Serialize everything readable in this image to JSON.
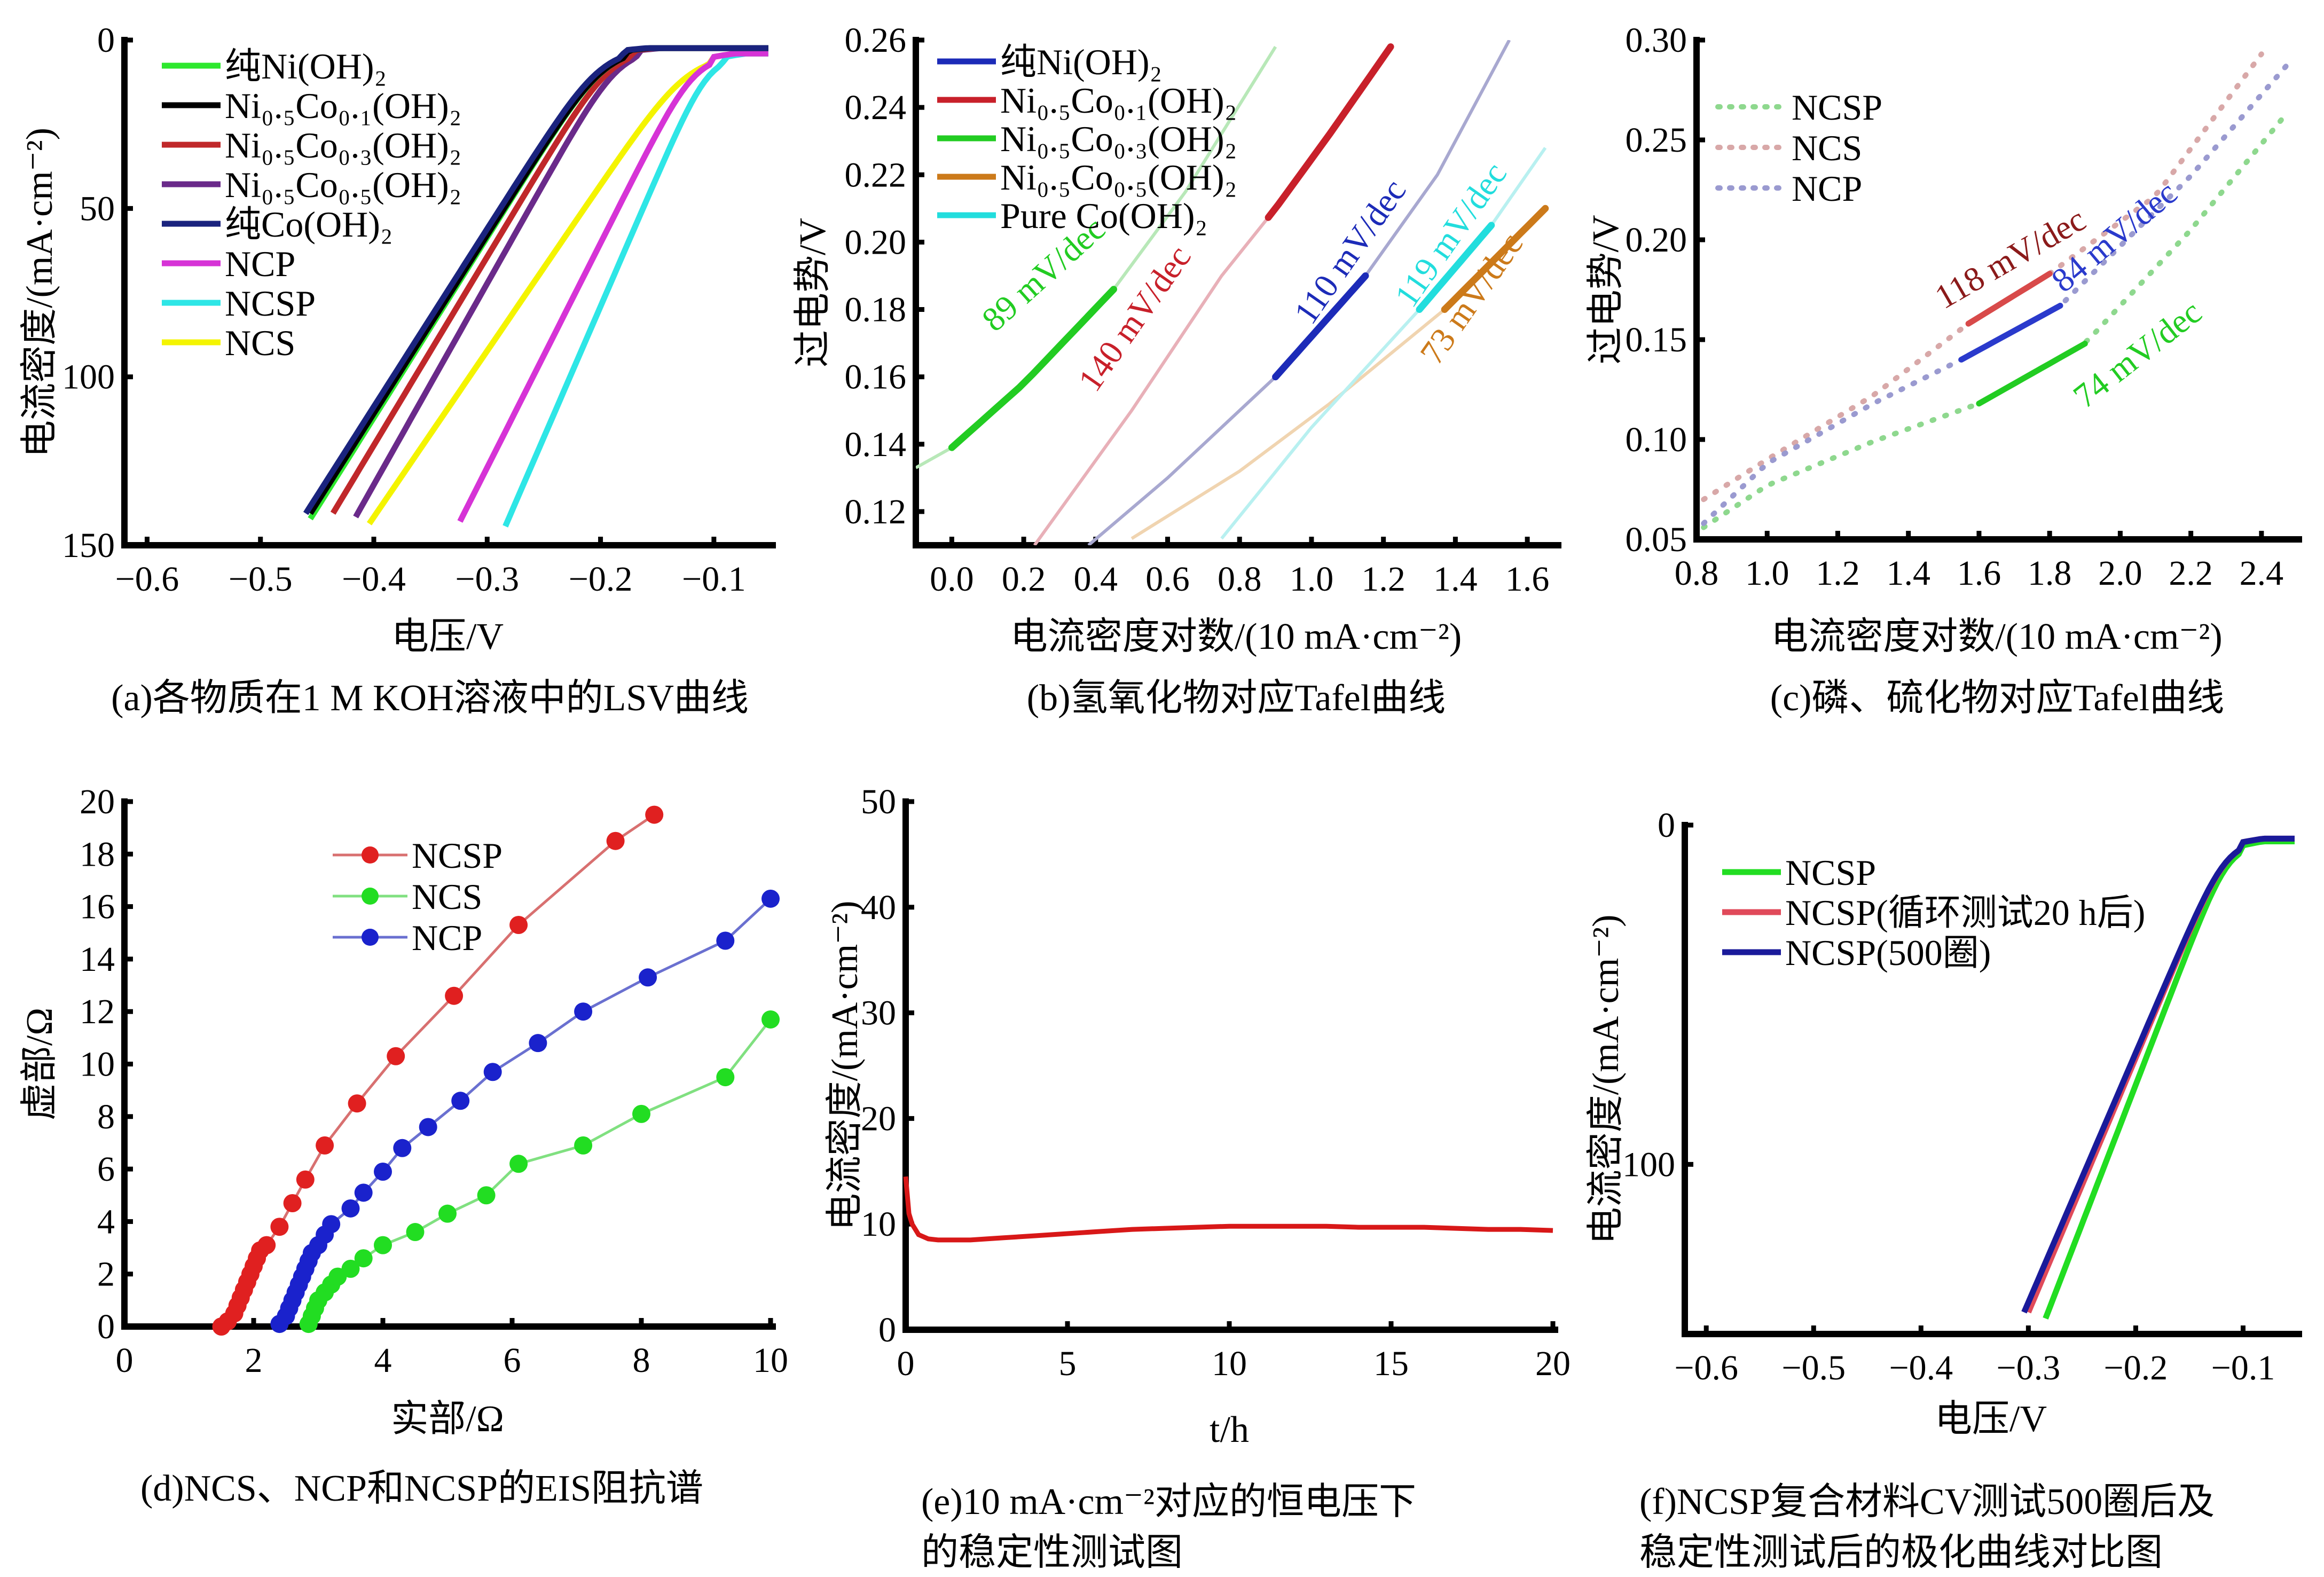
{
  "chart_data": [
    {
      "id": "a",
      "type": "line",
      "caption": "(a)各物质在1 M KOH溶液中的LSV曲线",
      "xlabel": "电压/V",
      "ylabel": "电流密度/(mA·cm⁻²)",
      "xlim": [
        -0.62,
        -0.05
      ],
      "ylim": [
        0,
        150
      ],
      "y_inverted": true,
      "xticks": [
        -0.6,
        -0.5,
        -0.4,
        -0.3,
        -0.2,
        -0.1
      ],
      "xtick_labels": [
        "−0.6",
        "−0.5",
        "−0.4",
        "−0.3",
        "−0.2",
        "−0.1"
      ],
      "yticks": [
        0,
        50,
        100,
        150
      ],
      "ytick_labels": [
        "0",
        "50",
        "100",
        "150"
      ],
      "legend_position": "top-left",
      "series": [
        {
          "name": "纯Ni(OH)₂",
          "color": "#2ee82e",
          "onset": -0.175,
          "v150": -0.455,
          "tail": 3
        },
        {
          "name": "Ni₀.₅Co₀.₁(OH)₂",
          "color": "#000000",
          "onset": -0.175,
          "v150": -0.458,
          "tail": 3
        },
        {
          "name": "Ni₀.₅Co₀.₃(OH)₂",
          "color": "#c0282a",
          "onset": -0.17,
          "v150": -0.438,
          "tail": 3
        },
        {
          "name": "Ni₀.₅Co₀.₅(OH)₂",
          "color": "#6a2a8a",
          "onset": -0.165,
          "v150": -0.416,
          "tail": 3
        },
        {
          "name": "纯Co(OH)₂",
          "color": "#1a237e",
          "onset": -0.178,
          "v150": -0.462,
          "tail": 3
        },
        {
          "name": "NCP",
          "color": "#d633d6",
          "onset": -0.1,
          "v150": -0.325,
          "tail": 5
        },
        {
          "name": "NCSP",
          "color": "#2ee6e6",
          "onset": -0.09,
          "v150": -0.283,
          "tail": 5
        },
        {
          "name": "NCS",
          "color": "#f4f400",
          "onset": -0.1,
          "v150": -0.404,
          "tail": 5
        }
      ]
    },
    {
      "id": "b",
      "type": "line",
      "caption": "(b)氢氧化物对应Tafel曲线",
      "xlabel": "电流密度对数/(10 mA·cm⁻²)",
      "ylabel": "过电势/V",
      "xlim": [
        -0.1,
        1.68
      ],
      "ylim": [
        0.11,
        0.26
      ],
      "xticks": [
        0.0,
        0.2,
        0.4,
        0.6,
        0.8,
        1.0,
        1.2,
        1.4,
        1.6
      ],
      "xtick_labels": [
        "0.0",
        "0.2",
        "0.4",
        "0.6",
        "0.8",
        "1.0",
        "1.2",
        "1.4",
        "1.6"
      ],
      "yticks": [
        0.12,
        0.14,
        0.16,
        0.18,
        0.2,
        0.22,
        0.24,
        0.26
      ],
      "ytick_labels": [
        "0.12",
        "0.14",
        "0.16",
        "0.18",
        "0.20",
        "0.22",
        "0.24",
        "0.26"
      ],
      "legend_position": "top-left",
      "series": [
        {
          "name": "纯Ni(OH)₂",
          "color": "#1c2bb8",
          "faint_color": "#a8a8d0",
          "points": [
            [
              0.38,
              0.11
            ],
            [
              0.6,
              0.13
            ],
            [
              0.9,
              0.16
            ],
            [
              1.15,
              0.19
            ],
            [
              1.35,
              0.22
            ],
            [
              1.55,
              0.26
            ]
          ],
          "fit": [
            0.9,
            1.15
          ],
          "slope_label": "110 mV/dec",
          "label_at": [
            1.0,
            0.175
          ]
        },
        {
          "name": "Ni₀.₅Co₀.₁(OH)₂",
          "color": "#c8202a",
          "faint_color": "#e8b0b8",
          "points": [
            [
              0.23,
              0.11
            ],
            [
              0.5,
              0.15
            ],
            [
              0.75,
              0.19
            ],
            [
              0.9,
              0.21
            ],
            [
              1.05,
              0.232
            ],
            [
              1.22,
              0.258
            ]
          ],
          "fit": [
            0.88,
            1.22
          ],
          "slope_label": "140 mV/dec",
          "label_at": [
            0.4,
            0.155
          ]
        },
        {
          "name": "Ni₀.₅Co₀.₃(OH)₂",
          "color": "#22cc22",
          "faint_color": "#b8e8b8",
          "points": [
            [
              -0.1,
              0.133
            ],
            [
              0.0,
              0.139
            ],
            [
              0.2,
              0.158
            ],
            [
              0.45,
              0.186
            ],
            [
              0.65,
              0.215
            ],
            [
              0.9,
              0.258
            ]
          ],
          "fit": [
            0.0,
            0.45
          ],
          "slope_label": "89 mV/dec",
          "label_at": [
            0.12,
            0.173
          ]
        },
        {
          "name": "Ni₀.₅Co₀.₅(OH)₂",
          "color": "#cc7a1a",
          "faint_color": "#f0d4b0",
          "points": [
            [
              0.5,
              0.112
            ],
            [
              0.8,
              0.132
            ],
            [
              1.05,
              0.152
            ],
            [
              1.37,
              0.18
            ],
            [
              1.65,
              0.21
            ]
          ],
          "fit": [
            1.37,
            1.65
          ],
          "slope_label": "73 mV/dec",
          "label_at": [
            1.35,
            0.163
          ]
        },
        {
          "name": "Pure Co(OH)₂",
          "color": "#22dddd",
          "faint_color": "#b8f0f0",
          "points": [
            [
              0.75,
              0.112
            ],
            [
              1.0,
              0.145
            ],
            [
              1.3,
              0.18
            ],
            [
              1.5,
              0.205
            ],
            [
              1.65,
              0.228
            ]
          ],
          "fit": [
            1.3,
            1.5
          ],
          "slope_label": "119 mV/dec",
          "label_at": [
            1.28,
            0.18
          ]
        }
      ]
    },
    {
      "id": "c",
      "type": "line",
      "caption": "(c)磷、硫化物对应Tafel曲线",
      "xlabel": "电流密度对数/(10 mA·cm⁻²)",
      "ylabel": "过电势/V",
      "xlim": [
        0.8,
        2.5
      ],
      "ylim": [
        0.05,
        0.3
      ],
      "xticks": [
        0.8,
        1.0,
        1.2,
        1.4,
        1.6,
        1.8,
        2.0,
        2.2,
        2.4
      ],
      "xtick_labels": [
        "0.8",
        "1.0",
        "1.2",
        "1.4",
        "1.6",
        "1.8",
        "2.0",
        "2.2",
        "2.4"
      ],
      "yticks": [
        0.05,
        0.1,
        0.15,
        0.2,
        0.25,
        0.3
      ],
      "ytick_labels": [
        "0.05",
        "0.10",
        "0.15",
        "0.20",
        "0.25",
        "0.30"
      ],
      "legend_position": "top-left",
      "series": [
        {
          "name": "NCSP",
          "color": "#22cc22",
          "dot_color": "#8ed88e",
          "points": [
            [
              0.82,
              0.056
            ],
            [
              1.0,
              0.077
            ],
            [
              1.3,
              0.099
            ],
            [
              1.6,
              0.118
            ],
            [
              1.9,
              0.148
            ],
            [
              2.2,
              0.205
            ],
            [
              2.47,
              0.263
            ]
          ],
          "fit": [
            1.6,
            1.9
          ],
          "slope_label": "74 mV/dec"
        },
        {
          "name": "NCS",
          "color": "#d84a4a",
          "dot_color": "#d8a8a8",
          "points": [
            [
              0.82,
              0.07
            ],
            [
              1.0,
              0.09
            ],
            [
              1.3,
              0.122
            ],
            [
              1.57,
              0.158
            ],
            [
              1.8,
              0.183
            ],
            [
              2.1,
              0.222
            ],
            [
              2.4,
              0.293
            ]
          ],
          "fit": [
            1.57,
            1.8
          ],
          "slope_label": "118 mV/dec"
        },
        {
          "name": "NCP",
          "color": "#2a3acc",
          "dot_color": "#9a9ad0",
          "points": [
            [
              0.82,
              0.058
            ],
            [
              1.0,
              0.088
            ],
            [
              1.3,
              0.118
            ],
            [
              1.55,
              0.14
            ],
            [
              1.83,
              0.167
            ],
            [
              2.2,
              0.232
            ],
            [
              2.47,
              0.287
            ]
          ],
          "fit": [
            1.55,
            1.83
          ],
          "slope_label": "84 mV/dec"
        }
      ]
    },
    {
      "id": "d",
      "type": "scatter",
      "caption": "(d)NCS、NCP和NCSP的EIS阻抗谱",
      "xlabel": "实部/Ω",
      "ylabel": "虚部/Ω",
      "xlim": [
        0,
        10
      ],
      "ylim": [
        0,
        20
      ],
      "xticks": [
        0,
        2,
        4,
        6,
        8,
        10
      ],
      "xtick_labels": [
        "0",
        "2",
        "4",
        "6",
        "8",
        "10"
      ],
      "yticks": [
        0,
        2,
        4,
        6,
        8,
        10,
        12,
        14,
        16,
        18,
        20
      ],
      "ytick_labels": [
        "0",
        "2",
        "4",
        "6",
        "8",
        "10",
        "12",
        "14",
        "16",
        "18",
        "20"
      ],
      "legend_position": "top-center",
      "series": [
        {
          "name": "NCSP",
          "color": "#e02020",
          "line_color": "#d87070",
          "x": [
            1.5,
            1.6,
            1.7,
            1.75,
            1.8,
            1.85,
            1.9,
            1.95,
            2.0,
            2.05,
            2.1,
            2.2,
            2.4,
            2.6,
            2.8,
            3.1,
            3.6,
            4.2,
            5.1,
            6.1,
            7.6,
            8.2
          ],
          "y": [
            0.0,
            0.2,
            0.5,
            0.8,
            1.1,
            1.4,
            1.7,
            2.0,
            2.3,
            2.6,
            2.9,
            3.1,
            3.8,
            4.7,
            5.6,
            6.9,
            8.5,
            10.3,
            12.6,
            15.3,
            18.5,
            19.5
          ]
        },
        {
          "name": "NCS",
          "color": "#22dd22",
          "line_color": "#80e080",
          "x": [
            2.85,
            2.9,
            2.95,
            3.0,
            3.1,
            3.2,
            3.3,
            3.5,
            3.7,
            4.0,
            4.5,
            5.0,
            5.6,
            6.1,
            7.1,
            8.0,
            9.3,
            10.0
          ],
          "y": [
            0.1,
            0.4,
            0.7,
            1.0,
            1.3,
            1.6,
            1.9,
            2.2,
            2.6,
            3.1,
            3.6,
            4.3,
            5.0,
            6.2,
            6.9,
            8.1,
            9.5,
            11.7
          ]
        },
        {
          "name": "NCP",
          "color": "#1a22cc",
          "line_color": "#6a70d0",
          "x": [
            2.4,
            2.5,
            2.55,
            2.6,
            2.65,
            2.7,
            2.75,
            2.8,
            2.85,
            2.9,
            3.0,
            3.1,
            3.2,
            3.5,
            3.7,
            4.0,
            4.3,
            4.7,
            5.2,
            5.7,
            6.4,
            7.1,
            8.1,
            9.3,
            10.0
          ],
          "y": [
            0.1,
            0.4,
            0.7,
            1.0,
            1.3,
            1.6,
            1.9,
            2.2,
            2.5,
            2.8,
            3.1,
            3.5,
            3.9,
            4.5,
            5.1,
            5.9,
            6.8,
            7.6,
            8.6,
            9.7,
            10.8,
            12.0,
            13.3,
            14.7,
            16.3
          ]
        }
      ]
    },
    {
      "id": "e",
      "type": "line",
      "caption_lines": [
        "(e)10 mA·cm⁻²对应的恒电压下",
        "的稳定性测试图"
      ],
      "xlabel": "t/h",
      "ylabel": "电流密度/(mA·cm⁻²)",
      "xlim": [
        0,
        20
      ],
      "ylim": [
        0,
        50
      ],
      "xticks": [
        0,
        5,
        10,
        15,
        20
      ],
      "xtick_labels": [
        "0",
        "5",
        "10",
        "15",
        "20"
      ],
      "yticks": [
        0,
        10,
        20,
        30,
        40,
        50
      ],
      "ytick_labels": [
        "0",
        "10",
        "20",
        "30",
        "40",
        "50"
      ],
      "series": [
        {
          "name": "NCSP",
          "color": "#d81818",
          "x": [
            0.0,
            0.1,
            0.2,
            0.4,
            0.7,
            1.0,
            2.0,
            3.0,
            4.0,
            5.0,
            6.0,
            7.0,
            8.0,
            9.0,
            10.0,
            11.0,
            12.0,
            13.0,
            14.0,
            15.0,
            16.0,
            17.0,
            18.0,
            19.0,
            20.0
          ],
          "y": [
            14.5,
            11.0,
            10.0,
            9.0,
            8.6,
            8.5,
            8.5,
            8.7,
            8.9,
            9.1,
            9.3,
            9.5,
            9.6,
            9.7,
            9.8,
            9.8,
            9.8,
            9.8,
            9.7,
            9.7,
            9.7,
            9.6,
            9.5,
            9.5,
            9.4
          ]
        }
      ]
    },
    {
      "id": "f",
      "type": "line",
      "caption_lines": [
        "(f)NCSP复合材料CV测试500圈后及",
        "稳定性测试后的极化曲线对比图"
      ],
      "xlabel": "电压/V",
      "ylabel": "电流密度/(mA·cm⁻²)",
      "xlim": [
        -0.62,
        -0.05
      ],
      "ylim": [
        0,
        150
      ],
      "y_inverted": true,
      "xticks": [
        -0.6,
        -0.5,
        -0.4,
        -0.3,
        -0.2,
        -0.1
      ],
      "xtick_labels": [
        "−0.6",
        "−0.5",
        "−0.4",
        "−0.3",
        "−0.2",
        "−0.1"
      ],
      "yticks": [
        0,
        100
      ],
      "ytick_labels": [
        "0",
        "100"
      ],
      "legend_position": "top-left",
      "series": [
        {
          "name": "NCSP",
          "color": "#22dd22",
          "onset": -0.1,
          "v150": -0.283,
          "tail": 6
        },
        {
          "name": "NCSP(循环测试20 h后)",
          "color": "#e04a5a",
          "onset": -0.1,
          "v150": -0.3,
          "tail": 5
        },
        {
          "name": "NCSP(500圈)",
          "color": "#1a1a9a",
          "onset": -0.1,
          "v150": -0.304,
          "tail": 5
        }
      ]
    }
  ]
}
